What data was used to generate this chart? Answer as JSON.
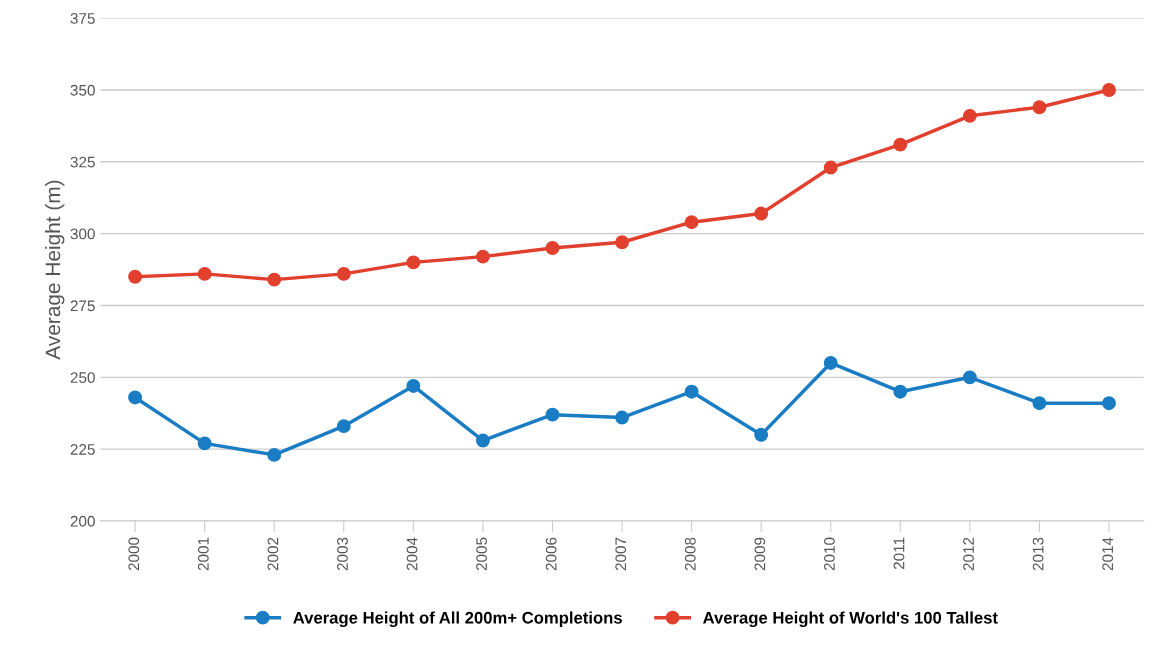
{
  "chart_data": {
    "type": "line",
    "ylabel": "Average Height (m)",
    "categories": [
      "2000",
      "2001",
      "2002",
      "2003",
      "2004",
      "2005",
      "2006",
      "2007",
      "2008",
      "2009",
      "2010",
      "2011",
      "2012",
      "2013",
      "2014"
    ],
    "series": [
      {
        "name": "Average Height of All 200m+ Completions",
        "color": "#1a7dc4",
        "values": [
          243,
          227,
          223,
          233,
          247,
          228,
          237,
          236,
          245,
          230,
          255,
          245,
          250,
          241,
          241
        ]
      },
      {
        "name": "Average Height of World's 100 Tallest",
        "color": "#e2402e",
        "values": [
          285,
          286,
          284,
          286,
          290,
          292,
          295,
          297,
          304,
          307,
          323,
          331,
          341,
          344,
          350
        ]
      }
    ],
    "ylim": [
      200,
      375
    ],
    "yticks": [
      200,
      225,
      250,
      275,
      300,
      325,
      350,
      375
    ],
    "grid": "y",
    "legend": "bottom",
    "marker": "circle",
    "line_style": "solid"
  }
}
